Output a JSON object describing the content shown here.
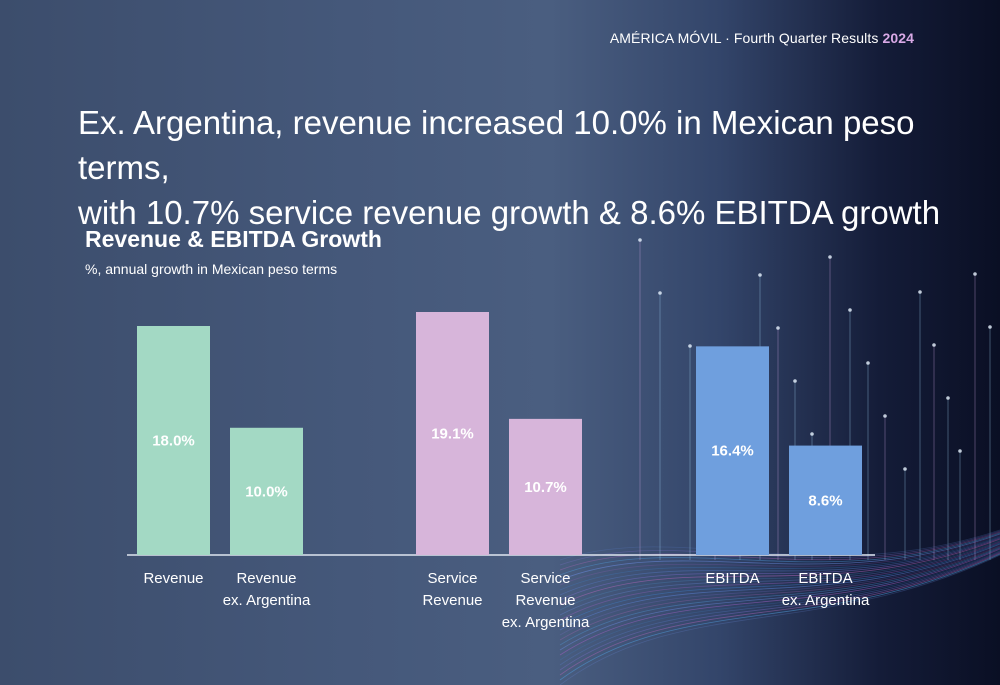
{
  "header": {
    "brand": "AMÉRICA MÓVIL",
    "separator": " · ",
    "report": "Fourth Quarter Results",
    "year": "2024"
  },
  "headline": {
    "line1": "Ex. Argentina, revenue increased 10.0% in Mexican peso terms,",
    "line2": "with 10.7% service revenue growth & 8.6% EBITDA growth"
  },
  "colors": {
    "revenue": "#a3d9c4",
    "service": "#d7b5da",
    "ebitda": "#6f9fde",
    "year_accent": "#d9a9e6"
  },
  "chart_data": {
    "type": "bar",
    "title": "Revenue & EBITDA Growth",
    "subtitle": "%, annual growth in Mexican peso terms",
    "unit": "%",
    "ylim": [
      0,
      20
    ],
    "grid": false,
    "legend": "none",
    "groups": [
      {
        "color": "#a3d9c4",
        "bars": [
          {
            "label": [
              "Revenue"
            ],
            "value": 18.0,
            "value_label": "18.0%"
          },
          {
            "label": [
              "Revenue",
              "ex. Argentina"
            ],
            "value": 10.0,
            "value_label": "10.0%"
          }
        ]
      },
      {
        "color": "#d7b5da",
        "bars": [
          {
            "label": [
              "Service",
              "Revenue"
            ],
            "value": 19.1,
            "value_label": "19.1%"
          },
          {
            "label": [
              "Service",
              "Revenue",
              "ex. Argentina"
            ],
            "value": 10.7,
            "value_label": "10.7%"
          }
        ]
      },
      {
        "color": "#6f9fde",
        "bars": [
          {
            "label": [
              "EBITDA"
            ],
            "value": 16.4,
            "value_label": "16.4%"
          },
          {
            "label": [
              "EBITDA",
              "ex. Argentina"
            ],
            "value": 8.6,
            "value_label": "8.6%"
          }
        ]
      }
    ]
  }
}
